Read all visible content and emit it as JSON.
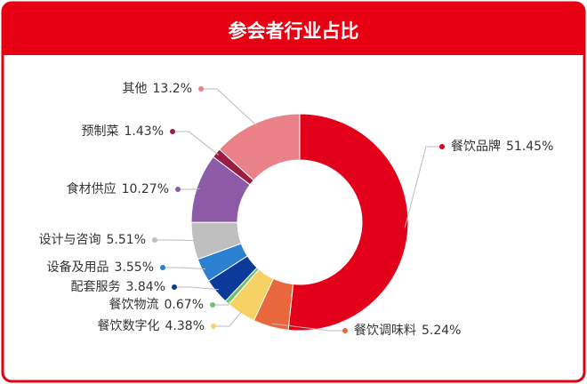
{
  "chart_data": {
    "type": "donut",
    "title": "参会者行业占比",
    "categories": [
      "餐饮品牌",
      "餐饮调味料",
      "餐饮数字化",
      "餐饮物流",
      "配套服务",
      "设备及用品",
      "设计与咨询",
      "食材供应",
      "预制菜",
      "其他"
    ],
    "values": [
      51.45,
      5.24,
      4.38,
      0.67,
      3.84,
      3.55,
      5.51,
      10.27,
      1.43,
      13.2
    ],
    "value_labels": [
      "51.45%",
      "5.24%",
      "4.38%",
      "0.67%",
      "3.84%",
      "3.55%",
      "5.51%",
      "10.27%",
      "1.43%",
      "13.2%"
    ],
    "colors": [
      "#e3001b",
      "#e8673c",
      "#f6d264",
      "#6fbf70",
      "#0b3a98",
      "#2b80d2",
      "#bfbfbf",
      "#8c5aa6",
      "#9a1d42",
      "#ea8088"
    ]
  }
}
